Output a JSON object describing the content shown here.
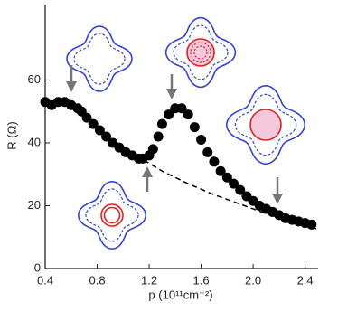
{
  "chart_data": {
    "type": "scatter",
    "x_label": "p (10¹¹cm⁻²)",
    "y_label": "R (Ω)",
    "x": [
      0.4,
      0.45,
      0.5,
      0.55,
      0.6,
      0.65,
      0.68,
      0.72,
      0.77,
      0.82,
      0.87,
      0.92,
      0.97,
      1.02,
      1.07,
      1.12,
      1.15,
      1.2,
      1.23,
      1.27,
      1.3,
      1.35,
      1.4,
      1.45,
      1.5,
      1.55,
      1.6,
      1.65,
      1.7,
      1.75,
      1.8,
      1.85,
      1.9,
      1.95,
      2.0,
      2.05,
      2.1,
      2.15,
      2.2,
      2.25,
      2.3,
      2.35,
      2.4,
      2.45
    ],
    "values": [
      53,
      52,
      53,
      53,
      52,
      51,
      50,
      48,
      46,
      44,
      42,
      40,
      38.5,
      37,
      36,
      35,
      35,
      36,
      38,
      42,
      46,
      49,
      51,
      51,
      49,
      45,
      41,
      37,
      34,
      31,
      29,
      27,
      25,
      23,
      21.5,
      20,
      19,
      18,
      17,
      16,
      15.5,
      15,
      14.5,
      14
    ],
    "color": "#000000",
    "fit": {
      "x": [
        1.1,
        1.3,
        1.5,
        1.7,
        1.9,
        2.1,
        2.3,
        2.5
      ],
      "values": [
        36,
        31,
        27,
        23.5,
        20.5,
        17.5,
        15,
        12.5
      ],
      "color": "#000000"
    },
    "xlim": [
      0.4,
      2.5
    ],
    "xticks": [
      0.4,
      0.8,
      1.2,
      1.6,
      2.0,
      2.4
    ],
    "ylim": [
      0,
      84
    ],
    "yticks": [
      0,
      20,
      40,
      60
    ]
  }
}
